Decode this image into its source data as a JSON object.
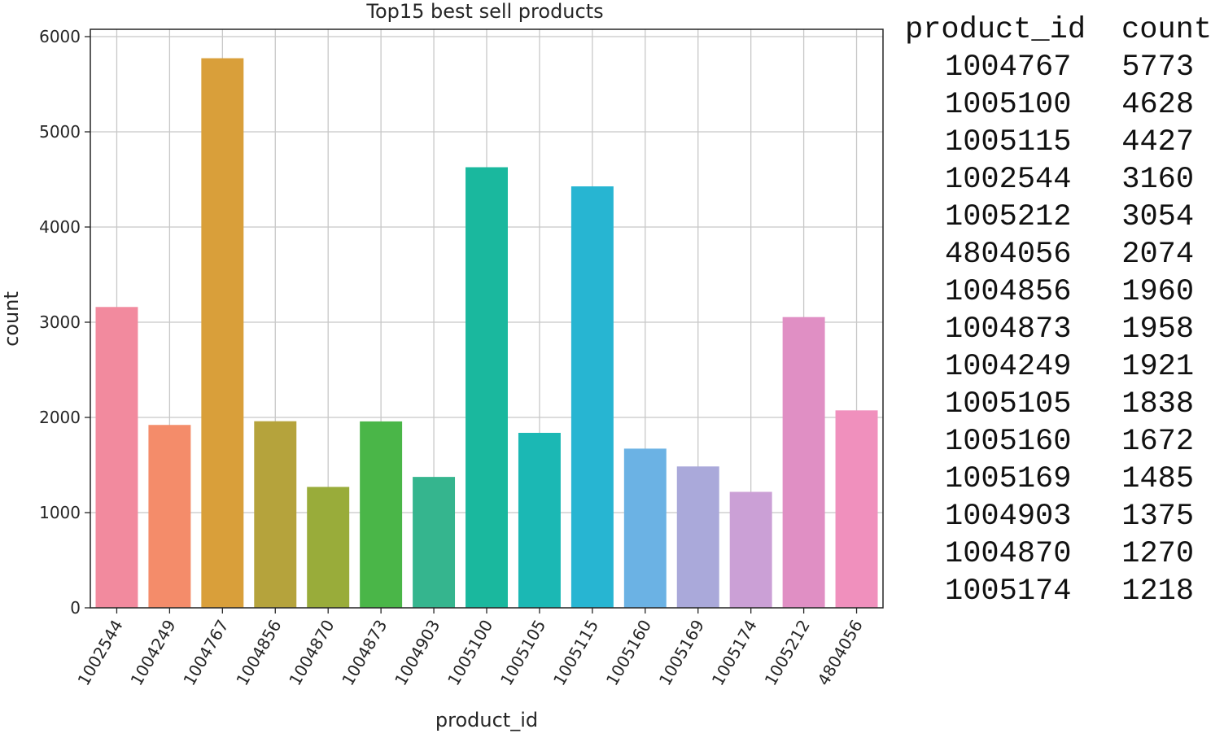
{
  "chart_data": {
    "type": "bar",
    "title": "Top15 best sell products",
    "xlabel": "product_id",
    "ylabel": "count",
    "ylim": [
      0,
      6000
    ],
    "yticks": [
      0,
      1000,
      2000,
      3000,
      4000,
      5000,
      6000
    ],
    "grid": true,
    "categories": [
      "1002544",
      "1004249",
      "1004767",
      "1004856",
      "1004870",
      "1004873",
      "1004903",
      "1005100",
      "1005105",
      "1005115",
      "1005160",
      "1005169",
      "1005174",
      "1005212",
      "4804056"
    ],
    "values": [
      3160,
      1921,
      5773,
      1960,
      1270,
      1958,
      1375,
      4628,
      1838,
      4427,
      1672,
      1485,
      1218,
      3054,
      2074
    ],
    "colors": [
      "#f28a9e",
      "#f48c6a",
      "#d99f3a",
      "#b5a33c",
      "#99ac3a",
      "#4ab648",
      "#35b58e",
      "#1ab89e",
      "#1bb8b4",
      "#27b5d2",
      "#6bb2e4",
      "#aaa9da",
      "#cba0d6",
      "#e08fc4",
      "#f090bd"
    ]
  },
  "table": {
    "headers": [
      "product_id",
      "count"
    ],
    "rows": [
      [
        "1004767",
        "5773"
      ],
      [
        "1005100",
        "4628"
      ],
      [
        "1005115",
        "4427"
      ],
      [
        "1002544",
        "3160"
      ],
      [
        "1005212",
        "3054"
      ],
      [
        "4804056",
        "2074"
      ],
      [
        "1004856",
        "1960"
      ],
      [
        "1004873",
        "1958"
      ],
      [
        "1004249",
        "1921"
      ],
      [
        "1005105",
        "1838"
      ],
      [
        "1005160",
        "1672"
      ],
      [
        "1005169",
        "1485"
      ],
      [
        "1004903",
        "1375"
      ],
      [
        "1004870",
        "1270"
      ],
      [
        "1005174",
        "1218"
      ]
    ]
  }
}
